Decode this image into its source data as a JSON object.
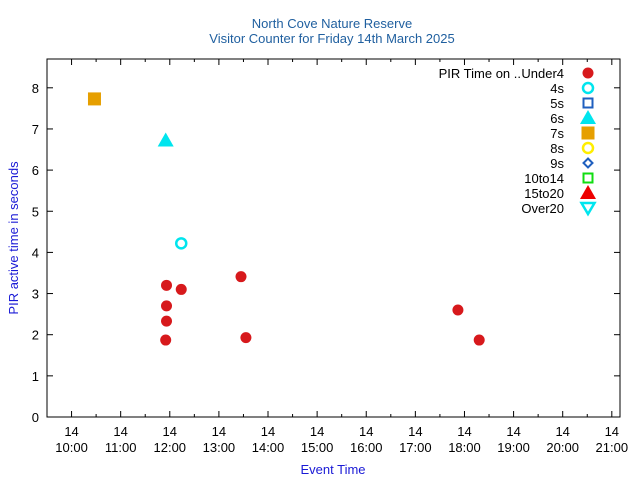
{
  "chart_data": {
    "type": "scatter",
    "title": "North Cove Nature Reserve",
    "subtitle": "Visitor Counter for Friday 14th March 2025",
    "xlabel": "Event Time",
    "ylabel": "PIR active time in seconds",
    "xlim": [
      "2025-03-14 09:30",
      "2025-03-14 21:10"
    ],
    "ylim": [
      0,
      8.7
    ],
    "x_tick_labels": [
      {
        "day": "14",
        "time": "10:00"
      },
      {
        "day": "14",
        "time": "11:00"
      },
      {
        "day": "14",
        "time": "12:00"
      },
      {
        "day": "14",
        "time": "13:00"
      },
      {
        "day": "14",
        "time": "14:00"
      },
      {
        "day": "14",
        "time": "15:00"
      },
      {
        "day": "14",
        "time": "16:00"
      },
      {
        "day": "14",
        "time": "17:00"
      },
      {
        "day": "14",
        "time": "18:00"
      },
      {
        "day": "14",
        "time": "19:00"
      },
      {
        "day": "14",
        "time": "20:00"
      },
      {
        "day": "14",
        "time": "21:00"
      }
    ],
    "y_ticks": [
      0,
      1,
      2,
      3,
      4,
      5,
      6,
      7,
      8
    ],
    "grid": false,
    "legend_position": "top-right",
    "legend_title": "PIR Time on ..",
    "series": [
      {
        "name": "Under4",
        "marker": "filled-circle",
        "color": "#d7191c",
        "points": [
          {
            "x": "2025-03-14 11:55",
            "y": 1.87
          },
          {
            "x": "2025-03-14 11:56",
            "y": 2.33
          },
          {
            "x": "2025-03-14 11:56",
            "y": 2.7
          },
          {
            "x": "2025-03-14 11:56",
            "y": 3.2
          },
          {
            "x": "2025-03-14 12:14",
            "y": 3.1
          },
          {
            "x": "2025-03-14 13:27",
            "y": 3.41
          },
          {
            "x": "2025-03-14 13:33",
            "y": 1.93
          },
          {
            "x": "2025-03-14 17:52",
            "y": 2.6
          },
          {
            "x": "2025-03-14 18:18",
            "y": 1.87
          }
        ]
      },
      {
        "name": "4s",
        "marker": "open-circle",
        "color": "#00e5ee",
        "points": [
          {
            "x": "2025-03-14 12:14",
            "y": 4.22
          }
        ]
      },
      {
        "name": "5s",
        "marker": "open-square",
        "color": "#1f5fbf",
        "points": []
      },
      {
        "name": "6s",
        "marker": "filled-triangle",
        "color": "#00e5ee",
        "points": [
          {
            "x": "2025-03-14 11:55",
            "y": 6.72
          }
        ]
      },
      {
        "name": "7s",
        "marker": "filled-square",
        "color": "#e69f00",
        "points": [
          {
            "x": "2025-03-14 10:28",
            "y": 7.73
          }
        ]
      },
      {
        "name": "8s",
        "marker": "open-circle",
        "color": "#ffee00",
        "points": []
      },
      {
        "name": "9s",
        "marker": "open-diamond",
        "color": "#1f5fbf",
        "points": []
      },
      {
        "name": "10to14",
        "marker": "open-square",
        "color": "#11dd11",
        "points": []
      },
      {
        "name": "15to20",
        "marker": "filled-triangle",
        "color": "#ee0000",
        "points": []
      },
      {
        "name": "Over20",
        "marker": "open-inverted-triangle",
        "color": "#00e5ee",
        "points": []
      }
    ]
  }
}
